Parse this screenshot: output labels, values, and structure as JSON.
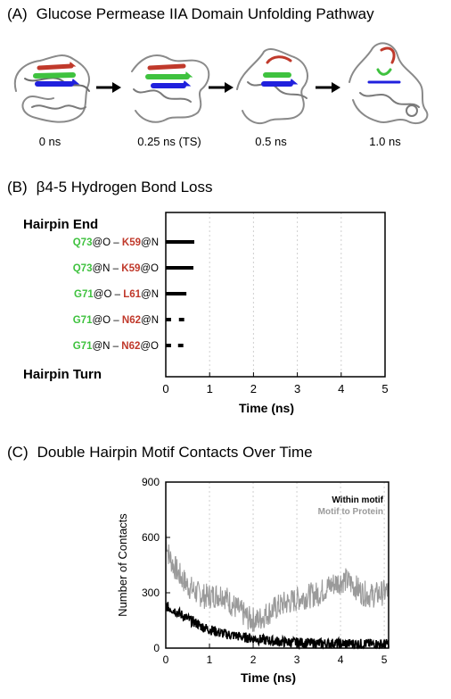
{
  "colors": {
    "ink": "#000000",
    "gray_series": "#9a9a9a",
    "strand_red": "#c0392b",
    "strand_green": "#3fc23f",
    "strand_blue": "#2020dd",
    "grid": "#cfcfcf"
  },
  "panelA": {
    "label": "(A)",
    "title": "Glucose Permease IIA Domain Unfolding Pathway",
    "snapshots": [
      {
        "time": "0 ns"
      },
      {
        "time": "0.25 ns (TS)"
      },
      {
        "time": "0.5 ns"
      },
      {
        "time": "1.0 ns"
      }
    ],
    "arrow_icon": "arrow-right-icon"
  },
  "panelB": {
    "label": "(B)",
    "title": "β4-5 Hydrogen Bond Loss",
    "top_label": "Hairpin End",
    "bottom_label": "Hairpin Turn"
  },
  "panelC": {
    "label": "(C)",
    "title": "Double Hairpin Motif Contacts Over Time"
  },
  "chart_data": [
    {
      "type": "bar",
      "orientation": "horizontal",
      "xlabel": "Time (ns)",
      "xlim": [
        0,
        5
      ],
      "xticks": [
        0,
        1,
        2,
        3,
        4,
        5
      ],
      "grid": "vertical-dotted",
      "categories": [
        {
          "res1": "Q73",
          "atom1": "@O",
          "sep": " – ",
          "res2": "K59",
          "atom2": "@N"
        },
        {
          "res1": "Q73",
          "atom1": "@N",
          "sep": " – ",
          "res2": "K59",
          "atom2": "@O"
        },
        {
          "res1": "G71",
          "atom1": "@O",
          "sep": " – ",
          "res2": "L61",
          "atom2": "@N"
        },
        {
          "res1": "G71",
          "atom1": "@O",
          "sep": " – ",
          "res2": "N62",
          "atom2": "@N"
        },
        {
          "res1": "G71",
          "atom1": "@N",
          "sep": " – ",
          "res2": "N62",
          "atom2": "@O"
        }
      ],
      "segments": [
        [
          [
            0.0,
            0.65
          ]
        ],
        [
          [
            0.0,
            0.63
          ]
        ],
        [
          [
            0.0,
            0.47
          ]
        ],
        [
          [
            0.0,
            0.12
          ],
          [
            0.3,
            0.42
          ]
        ],
        [
          [
            0.0,
            0.12
          ],
          [
            0.28,
            0.4
          ]
        ]
      ]
    },
    {
      "type": "line",
      "xlabel": "Time (ns)",
      "ylabel": "Number of Contacts",
      "xlim": [
        0,
        5.1
      ],
      "ylim": [
        0,
        900
      ],
      "xticks": [
        0,
        1,
        2,
        3,
        4,
        5
      ],
      "yticks": [
        0,
        300,
        600,
        900
      ],
      "grid": "vertical-dotted",
      "legend_position": "top-right",
      "series": [
        {
          "name": "Within motif",
          "color": "#000000",
          "x": [
            0,
            0.1,
            0.2,
            0.3,
            0.4,
            0.5,
            0.6,
            0.7,
            0.8,
            0.9,
            1.0,
            1.1,
            1.2,
            1.3,
            1.4,
            1.5,
            1.6,
            1.7,
            1.8,
            1.9,
            2.0,
            2.2,
            2.4,
            2.6,
            2.8,
            3.0,
            3.2,
            3.4,
            3.6,
            3.8,
            4.0,
            4.2,
            4.4,
            4.6,
            4.8,
            5.0,
            5.1
          ],
          "values": [
            230,
            215,
            205,
            190,
            175,
            160,
            145,
            135,
            120,
            110,
            100,
            95,
            85,
            80,
            75,
            70,
            68,
            62,
            58,
            55,
            52,
            45,
            40,
            35,
            32,
            30,
            28,
            26,
            25,
            25,
            24,
            24,
            23,
            23,
            22,
            22,
            22
          ]
        },
        {
          "name": "Motif to Protein",
          "color": "#9a9a9a",
          "x": [
            0,
            0.05,
            0.15,
            0.3,
            0.5,
            0.7,
            0.9,
            1.1,
            1.3,
            1.5,
            1.7,
            1.9,
            2.1,
            2.3,
            2.5,
            2.7,
            2.9,
            3.1,
            3.3,
            3.5,
            3.7,
            3.9,
            4.1,
            4.3,
            4.5,
            4.7,
            4.9,
            5.1
          ],
          "values": [
            620,
            520,
            460,
            400,
            340,
            300,
            280,
            285,
            295,
            240,
            200,
            160,
            150,
            185,
            215,
            240,
            255,
            275,
            285,
            295,
            330,
            355,
            370,
            340,
            300,
            285,
            295,
            310
          ]
        }
      ]
    }
  ]
}
